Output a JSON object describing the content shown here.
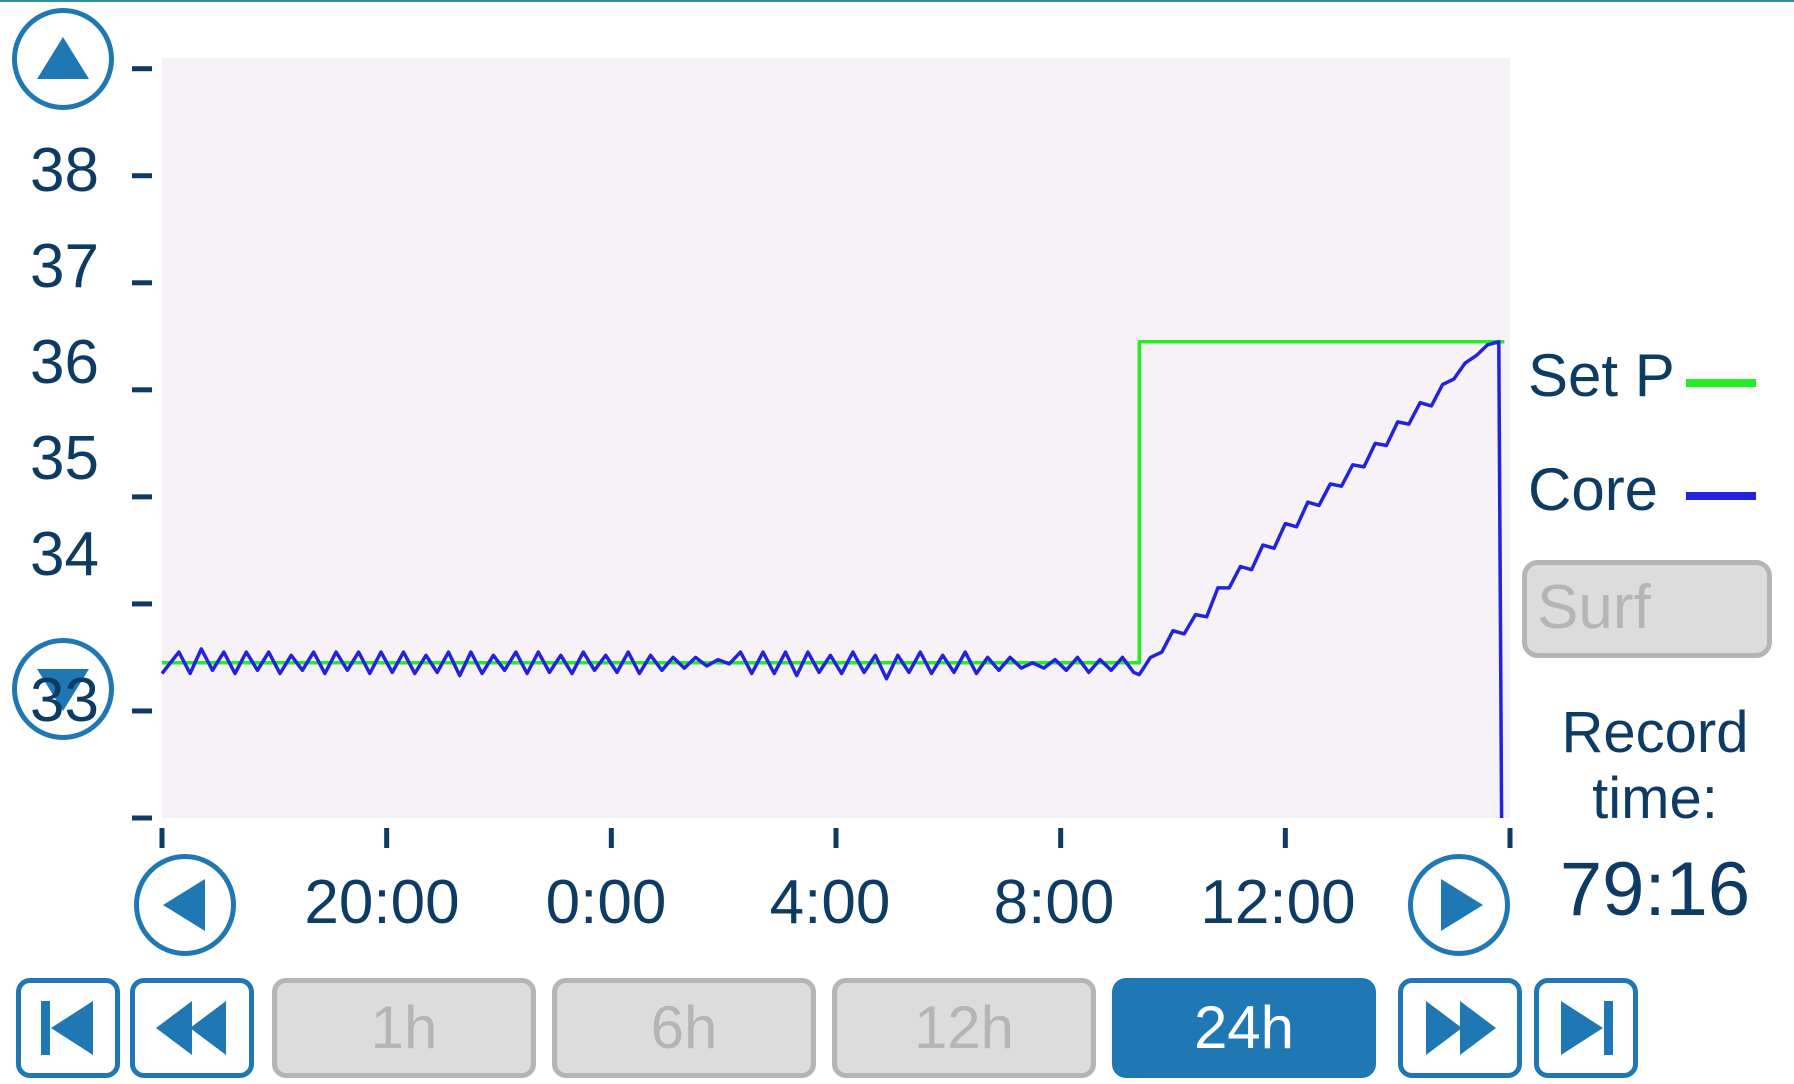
{
  "y_axis": {
    "ticks": [
      "38",
      "37",
      "36",
      "35",
      "34",
      "33"
    ]
  },
  "x_axis": {
    "ticks": [
      "20:00",
      "0:00",
      "4:00",
      "8:00",
      "12:00"
    ]
  },
  "legend": {
    "items": [
      {
        "label": "Set P",
        "color": "#22ee22"
      },
      {
        "label": "Core",
        "color": "#2323dd"
      }
    ]
  },
  "controls": {
    "scroll_up_icon": "triangle-up-icon",
    "scroll_down_icon": "triangle-down-icon",
    "pan_left_icon": "triangle-left-icon",
    "pan_right_icon": "triangle-right-icon",
    "first_icon": "skip-to-start-icon",
    "rewind_icon": "rewind-icon",
    "fast_forward_icon": "fast-forward-icon",
    "last_icon": "skip-to-end-icon",
    "surf_label": "Surf",
    "record_label_line1": "Record",
    "record_label_line2": "time:",
    "record_value": "79:16",
    "ranges": [
      {
        "label": "1h",
        "active": false
      },
      {
        "label": "6h",
        "active": false
      },
      {
        "label": "12h",
        "active": false
      },
      {
        "label": "24h",
        "active": true
      }
    ]
  },
  "colors": {
    "accent": "#1f78b4",
    "plot_background": "#f7f2f7",
    "text": "#0d3b63",
    "disabled": "#b5b5b5"
  },
  "chart_data": {
    "type": "line",
    "ylim": [
      32.0,
      39.1
    ],
    "x_ticks_hours": [
      16,
      20,
      24,
      28,
      32,
      36,
      40
    ],
    "xlim_hours": [
      16,
      40
    ],
    "series": [
      {
        "name": "Set P",
        "color": "#22ee22",
        "points": [
          [
            16.0,
            33.45
          ],
          [
            33.4,
            33.45
          ],
          [
            33.4,
            36.45
          ],
          [
            39.9,
            36.45
          ]
        ]
      },
      {
        "name": "Core",
        "color": "#2323dd",
        "points": [
          [
            16.0,
            33.35
          ],
          [
            16.3,
            33.55
          ],
          [
            16.5,
            33.35
          ],
          [
            16.7,
            33.58
          ],
          [
            16.9,
            33.38
          ],
          [
            17.1,
            33.55
          ],
          [
            17.3,
            33.35
          ],
          [
            17.5,
            33.55
          ],
          [
            17.7,
            33.38
          ],
          [
            17.9,
            33.55
          ],
          [
            18.1,
            33.35
          ],
          [
            18.3,
            33.52
          ],
          [
            18.5,
            33.38
          ],
          [
            18.7,
            33.55
          ],
          [
            18.9,
            33.35
          ],
          [
            19.1,
            33.55
          ],
          [
            19.3,
            33.38
          ],
          [
            19.5,
            33.55
          ],
          [
            19.7,
            33.35
          ],
          [
            19.9,
            33.55
          ],
          [
            20.1,
            33.36
          ],
          [
            20.3,
            33.55
          ],
          [
            20.5,
            33.35
          ],
          [
            20.7,
            33.52
          ],
          [
            20.9,
            33.36
          ],
          [
            21.1,
            33.55
          ],
          [
            21.3,
            33.33
          ],
          [
            21.5,
            33.55
          ],
          [
            21.7,
            33.35
          ],
          [
            21.9,
            33.52
          ],
          [
            22.1,
            33.38
          ],
          [
            22.3,
            33.55
          ],
          [
            22.5,
            33.35
          ],
          [
            22.7,
            33.55
          ],
          [
            22.9,
            33.36
          ],
          [
            23.1,
            33.52
          ],
          [
            23.3,
            33.35
          ],
          [
            23.5,
            33.55
          ],
          [
            23.7,
            33.38
          ],
          [
            23.9,
            33.52
          ],
          [
            24.1,
            33.36
          ],
          [
            24.3,
            33.55
          ],
          [
            24.5,
            33.35
          ],
          [
            24.7,
            33.52
          ],
          [
            24.9,
            33.38
          ],
          [
            25.1,
            33.5
          ],
          [
            25.3,
            33.4
          ],
          [
            25.5,
            33.5
          ],
          [
            25.7,
            33.42
          ],
          [
            25.9,
            33.48
          ],
          [
            26.1,
            33.44
          ],
          [
            26.3,
            33.55
          ],
          [
            26.5,
            33.35
          ],
          [
            26.7,
            33.55
          ],
          [
            26.9,
            33.35
          ],
          [
            27.1,
            33.55
          ],
          [
            27.3,
            33.33
          ],
          [
            27.5,
            33.55
          ],
          [
            27.7,
            33.36
          ],
          [
            27.9,
            33.52
          ],
          [
            28.1,
            33.35
          ],
          [
            28.3,
            33.55
          ],
          [
            28.5,
            33.36
          ],
          [
            28.7,
            33.52
          ],
          [
            28.9,
            33.3
          ],
          [
            29.1,
            33.52
          ],
          [
            29.3,
            33.36
          ],
          [
            29.5,
            33.55
          ],
          [
            29.7,
            33.35
          ],
          [
            29.9,
            33.52
          ],
          [
            30.1,
            33.36
          ],
          [
            30.3,
            33.55
          ],
          [
            30.5,
            33.35
          ],
          [
            30.7,
            33.5
          ],
          [
            30.9,
            33.38
          ],
          [
            31.1,
            33.5
          ],
          [
            31.3,
            33.4
          ],
          [
            31.5,
            33.45
          ],
          [
            31.7,
            33.4
          ],
          [
            31.9,
            33.48
          ],
          [
            32.1,
            33.38
          ],
          [
            32.3,
            33.5
          ],
          [
            32.5,
            33.36
          ],
          [
            32.7,
            33.48
          ],
          [
            32.9,
            33.38
          ],
          [
            33.1,
            33.5
          ],
          [
            33.3,
            33.36
          ],
          [
            33.4,
            33.34
          ],
          [
            33.6,
            33.5
          ],
          [
            33.8,
            33.55
          ],
          [
            34.0,
            33.75
          ],
          [
            34.2,
            33.72
          ],
          [
            34.4,
            33.9
          ],
          [
            34.6,
            33.88
          ],
          [
            34.8,
            34.15
          ],
          [
            35.0,
            34.15
          ],
          [
            35.2,
            34.35
          ],
          [
            35.4,
            34.32
          ],
          [
            35.6,
            34.55
          ],
          [
            35.8,
            34.52
          ],
          [
            36.0,
            34.75
          ],
          [
            36.2,
            34.72
          ],
          [
            36.4,
            34.95
          ],
          [
            36.6,
            34.92
          ],
          [
            36.8,
            35.12
          ],
          [
            37.0,
            35.1
          ],
          [
            37.2,
            35.3
          ],
          [
            37.4,
            35.28
          ],
          [
            37.6,
            35.5
          ],
          [
            37.8,
            35.48
          ],
          [
            38.0,
            35.7
          ],
          [
            38.2,
            35.68
          ],
          [
            38.4,
            35.88
          ],
          [
            38.6,
            35.85
          ],
          [
            38.8,
            36.05
          ],
          [
            39.0,
            36.1
          ],
          [
            39.2,
            36.25
          ],
          [
            39.4,
            36.32
          ],
          [
            39.6,
            36.42
          ],
          [
            39.8,
            36.45
          ],
          [
            39.85,
            32.0
          ]
        ]
      }
    ]
  }
}
